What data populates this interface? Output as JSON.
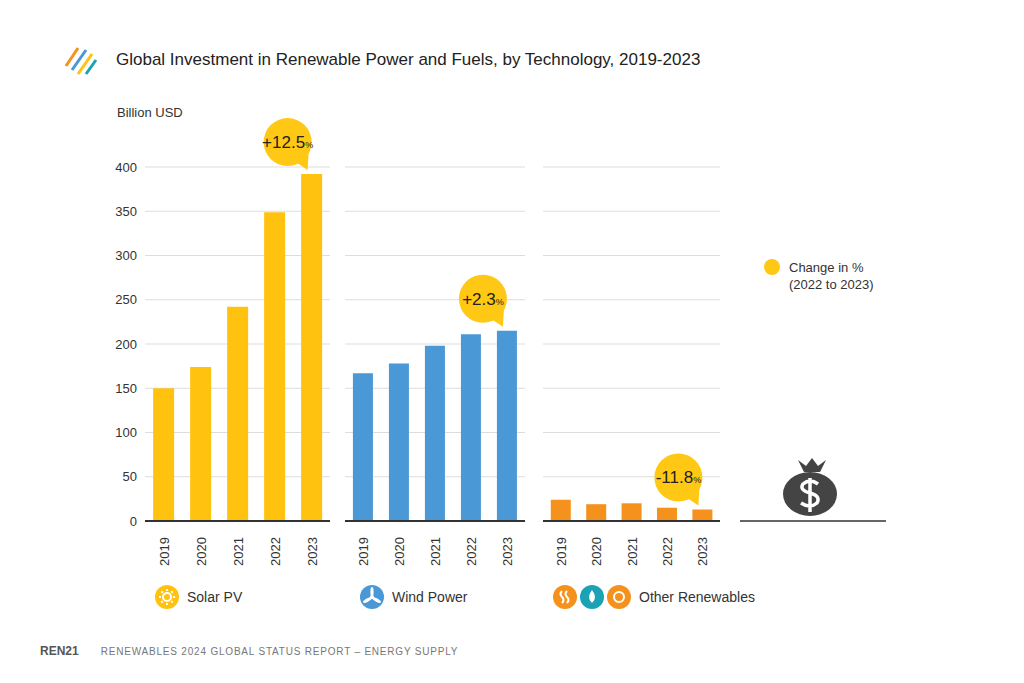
{
  "title": "Global Investment in Renewable Power and Fuels, by Technology, 2019-2023",
  "y_label": "Billion USD",
  "legend_text": [
    "Change in %",
    "(2022 to 2023)"
  ],
  "publisher": "REN21",
  "source": "RENEWABLES 2024 GLOBAL STATUS REPORT – ENERGY SUPPLY",
  "chart_data": [
    {
      "type": "bar",
      "categories": [
        "2019",
        "2020",
        "2021",
        "2022",
        "2023"
      ],
      "series": [
        {
          "name": "Solar PV",
          "color": "#FFC20E",
          "values": [
            150,
            174,
            242,
            349,
            392
          ]
        }
      ],
      "ylim": [
        0,
        400
      ],
      "yticks": [
        0,
        50,
        100,
        150,
        200,
        250,
        300,
        350,
        400
      ],
      "grid": true,
      "annotation": "+12.5%"
    },
    {
      "type": "bar",
      "categories": [
        "2019",
        "2020",
        "2021",
        "2022",
        "2023"
      ],
      "series": [
        {
          "name": "Wind Power",
          "color": "#4A98D6",
          "values": [
            167,
            178,
            198,
            211,
            215
          ]
        }
      ],
      "ylim": [
        0,
        400
      ],
      "yticks": [
        0,
        50,
        100,
        150,
        200,
        250,
        300,
        350,
        400
      ],
      "grid": true,
      "tick_labels": "x",
      "annotation": "+2.3%"
    },
    {
      "type": "bar",
      "categories": [
        "2019",
        "2020",
        "2021",
        "2022",
        "2023"
      ],
      "series": [
        {
          "name": "Other Renewables",
          "color": "#F5921E",
          "values": [
            24,
            19,
            20,
            15,
            13
          ]
        }
      ],
      "ylim": [
        0,
        400
      ],
      "yticks": [
        0,
        50,
        100,
        150,
        200,
        250,
        300,
        350,
        400
      ],
      "grid": true,
      "tick_labels": "x",
      "annotation": "-11.8%"
    }
  ]
}
